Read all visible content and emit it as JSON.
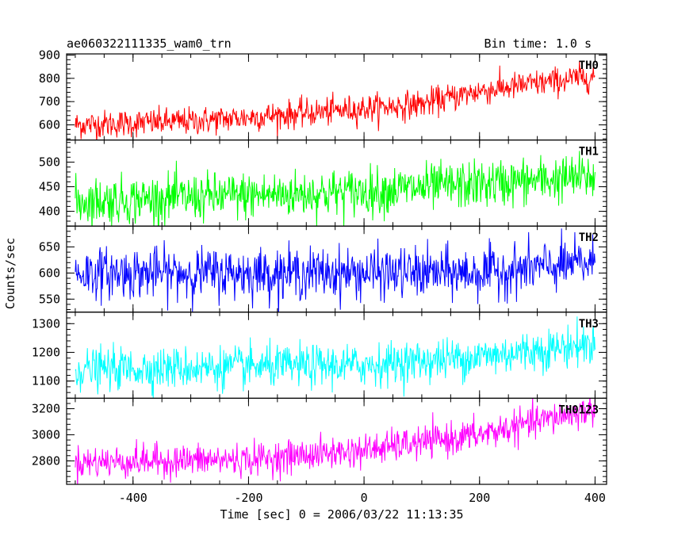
{
  "chart_data": {
    "type": "line",
    "title": "ae060322111335_wam0_trn",
    "bin_time": "Bin time: 1.0 s",
    "xlabel": "Time [sec] 0 = 2006/03/22 11:13:35",
    "ylabel": "Counts/sec",
    "xlim": [
      -515,
      420
    ],
    "xticks": [
      -400,
      -200,
      0,
      200,
      400
    ],
    "x_start": -500,
    "x_end": 400,
    "x_step": 1,
    "grid": false,
    "legend": "none",
    "panels": [
      {
        "name": "TH0",
        "color": "#ff0000",
        "ylim": [
          535,
          905
        ],
        "yticks": [
          600,
          700,
          800,
          900
        ],
        "trend": [
          [
            -500,
            600
          ],
          [
            -300,
            615
          ],
          [
            -100,
            650
          ],
          [
            100,
            690
          ],
          [
            200,
            745
          ],
          [
            400,
            810
          ]
        ],
        "noise_sd": 30
      },
      {
        "name": "TH1",
        "color": "#00ff00",
        "ylim": [
          370,
          545
        ],
        "yticks": [
          400,
          450,
          500
        ],
        "trend": [
          [
            -500,
            420
          ],
          [
            0,
            440
          ],
          [
            400,
            470
          ]
        ],
        "noise_sd": 24
      },
      {
        "name": "TH2",
        "color": "#0000ff",
        "ylim": [
          525,
          690
        ],
        "yticks": [
          550,
          600,
          650
        ],
        "trend": [
          [
            -500,
            600
          ],
          [
            200,
            600
          ],
          [
            400,
            620
          ]
        ],
        "noise_sd": 24
      },
      {
        "name": "TH3",
        "color": "#00ffff",
        "ylim": [
          1040,
          1340
        ],
        "yticks": [
          1100,
          1200,
          1300
        ],
        "trend": [
          [
            -500,
            1140
          ],
          [
            0,
            1155
          ],
          [
            200,
            1185
          ],
          [
            400,
            1230
          ]
        ],
        "noise_sd": 36
      },
      {
        "name": "TH0123",
        "color": "#ff00ff",
        "ylim": [
          2620,
          3280
        ],
        "yticks": [
          2800,
          3000,
          3200
        ],
        "trend": [
          [
            -500,
            2790
          ],
          [
            -200,
            2810
          ],
          [
            0,
            2880
          ],
          [
            200,
            3000
          ],
          [
            400,
            3200
          ]
        ],
        "noise_sd": 62
      }
    ]
  }
}
